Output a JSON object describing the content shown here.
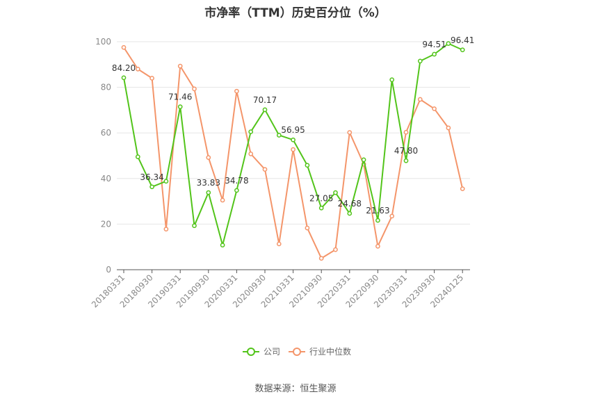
{
  "chart_data": {
    "type": "line",
    "title": "市净率（TTM）历史百分位（%）",
    "source": "数据来源：恒生聚源",
    "ylim": [
      0,
      100
    ],
    "yticks": [
      0,
      20,
      40,
      60,
      80,
      100
    ],
    "xticks": [
      "20180331",
      "20180930",
      "20190331",
      "20190930",
      "20200331",
      "20200930",
      "20210331",
      "20210930",
      "20220331",
      "20220930",
      "20230331",
      "20230930",
      "20240125"
    ],
    "grid": "horizontal",
    "legend_position": "bottom",
    "series": [
      {
        "name": "公司",
        "color": "#52c41a",
        "values": [
          84.2,
          49.5,
          36.34,
          38.8,
          71.46,
          19.3,
          33.83,
          10.8,
          34.78,
          60.5,
          70.17,
          59.0,
          56.95,
          45.8,
          27.05,
          33.8,
          24.68,
          48.2,
          21.63,
          83.3,
          47.8,
          91.5,
          94.51,
          99.2,
          96.41
        ],
        "labels": {
          "0": "84.20",
          "2": "36.34",
          "4": "71.46",
          "6": "33.83",
          "8": "34.78",
          "10": "70.17",
          "12": "56.95",
          "14": "27.05",
          "16": "24.68",
          "18": "21.63",
          "20": "47.80",
          "22": "94.51",
          "24": "96.41"
        }
      },
      {
        "name": "行业中位数",
        "color": "#f4956a",
        "values": [
          97.5,
          88.0,
          84.0,
          17.8,
          89.3,
          79.3,
          49.2,
          30.5,
          78.3,
          50.8,
          44.0,
          11.3,
          52.7,
          18.3,
          5.0,
          8.8,
          60.2,
          46.3,
          10.3,
          23.5,
          60.3,
          74.7,
          70.6,
          62.2,
          35.5
        ]
      }
    ]
  }
}
